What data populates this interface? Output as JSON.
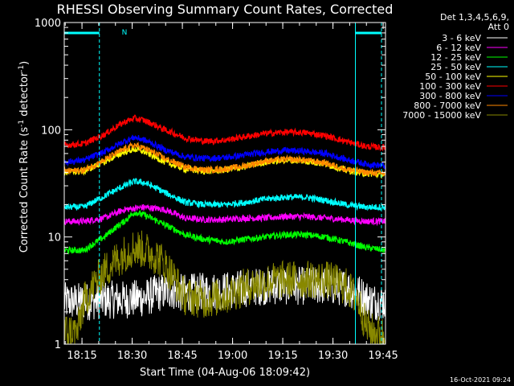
{
  "chart_data": {
    "type": "line",
    "title": "RHESSI Observing Summary Count Rates, Corrected",
    "xlabel": "Start Time (04-Aug-06 18:09:42)",
    "ylabel_main": "Corrected Count Rate (s",
    "ylabel_sup1": "-1",
    "ylabel_mid": " detector",
    "ylabel_sup2": "-1",
    "ylabel_end": ")",
    "yscale": "log",
    "ylim": [
      1,
      1000
    ],
    "xlim_minutes": [
      0,
      96
    ],
    "x_ticks": [
      "18:15",
      "18:30",
      "18:45",
      "19:00",
      "19:15",
      "19:30",
      "19:45"
    ],
    "y_ticks": [
      "1",
      "10",
      "100",
      "1000"
    ],
    "legend_header": [
      "Det 1,3,4,5,6,9,",
      "Att 0"
    ],
    "legend_position": "right",
    "annotations": {
      "night_marker": "N",
      "timestamp": "16-Oct-2021 09:24"
    },
    "series": [
      {
        "name": "3 - 6 keV",
        "color": "#ffffff",
        "x": [
          0,
          7,
          12,
          18,
          24,
          28,
          32,
          34,
          36,
          42,
          50,
          56,
          60,
          66,
          72,
          78,
          84,
          88,
          90,
          92,
          96
        ],
        "values": [
          2.5,
          2.5,
          2.6,
          2.6,
          2.7,
          3.0,
          3.2,
          3.0,
          3.0,
          3.1,
          3.2,
          3.4,
          3.5,
          3.5,
          3.5,
          3.5,
          3.4,
          3.0,
          2.7,
          2.5,
          2.5
        ]
      },
      {
        "name": "6 - 12 keV",
        "color": "#ff00ff",
        "x": [
          0,
          6,
          12,
          18,
          24,
          30,
          36,
          42,
          48,
          54,
          60,
          66,
          72,
          78,
          84,
          90,
          96
        ],
        "values": [
          14,
          14,
          15,
          18,
          19,
          18,
          15,
          14.5,
          14.5,
          15,
          15,
          15.5,
          15.5,
          15,
          14.5,
          14,
          14
        ]
      },
      {
        "name": "12 - 25 keV",
        "color": "#00ff00",
        "x": [
          0,
          6,
          12,
          18,
          21,
          24,
          30,
          36,
          42,
          48,
          54,
          60,
          66,
          72,
          78,
          84,
          90,
          96
        ],
        "values": [
          7.5,
          7.5,
          10,
          14,
          17,
          16,
          13,
          10.5,
          9.5,
          9,
          9.5,
          10,
          10.5,
          10.5,
          10,
          9,
          8,
          7.5
        ]
      },
      {
        "name": "25 - 50 keV",
        "color": "#00ffff",
        "x": [
          0,
          6,
          12,
          18,
          21,
          24,
          30,
          36,
          42,
          48,
          54,
          60,
          66,
          72,
          78,
          84,
          90,
          96
        ],
        "values": [
          19,
          19,
          24,
          30,
          33,
          32,
          26,
          21,
          20,
          20,
          21,
          22.5,
          23.5,
          23.5,
          22,
          20,
          19,
          19
        ]
      },
      {
        "name": "50 - 100 keV",
        "color": "#ffff00",
        "x": [
          0,
          6,
          12,
          18,
          21,
          24,
          30,
          36,
          42,
          48,
          54,
          60,
          66,
          72,
          78,
          84,
          90,
          96
        ],
        "values": [
          40,
          41,
          50,
          62,
          66,
          62,
          50,
          43,
          41,
          42,
          45,
          50,
          52,
          51,
          48,
          42,
          39,
          38
        ]
      },
      {
        "name": "100 - 300 keV",
        "color": "#ff0000",
        "x": [
          0,
          6,
          12,
          18,
          21,
          24,
          30,
          36,
          42,
          48,
          54,
          60,
          66,
          72,
          78,
          84,
          90,
          96
        ],
        "values": [
          72,
          74,
          90,
          118,
          128,
          122,
          100,
          84,
          78,
          80,
          86,
          92,
          95,
          94,
          88,
          78,
          70,
          68
        ]
      },
      {
        "name": "300 - 800 keV",
        "color": "#0000ff",
        "x": [
          0,
          6,
          12,
          18,
          21,
          24,
          30,
          36,
          42,
          48,
          54,
          60,
          66,
          72,
          78,
          84,
          90,
          96
        ],
        "values": [
          50,
          52,
          62,
          78,
          85,
          80,
          65,
          56,
          54,
          55,
          58,
          62,
          64,
          63,
          60,
          53,
          48,
          46
        ]
      },
      {
        "name": "800 - 7000 keV",
        "color": "#ff8800",
        "x": [
          0,
          6,
          12,
          18,
          21,
          24,
          30,
          36,
          42,
          48,
          54,
          60,
          66,
          72,
          78,
          84,
          90,
          96
        ],
        "values": [
          41,
          42,
          52,
          66,
          72,
          67,
          54,
          45,
          42,
          43,
          46,
          51,
          53,
          52,
          49,
          43,
          40,
          39
        ]
      },
      {
        "name": "7000 - 15000 keV",
        "color": "#888800",
        "x": [
          0,
          4,
          6,
          10,
          14,
          18,
          21,
          24,
          28,
          32,
          34,
          36,
          42,
          48,
          54,
          60,
          66,
          72,
          78,
          84,
          88,
          90,
          92,
          96
        ],
        "values": [
          1.3,
          1.3,
          2.5,
          4,
          5.5,
          7,
          8,
          7.5,
          6.5,
          4.5,
          3.5,
          2.8,
          2.6,
          2.8,
          3.4,
          3.8,
          4,
          4,
          4,
          3.5,
          2.5,
          1.5,
          1.3,
          1.2
        ]
      }
    ]
  }
}
